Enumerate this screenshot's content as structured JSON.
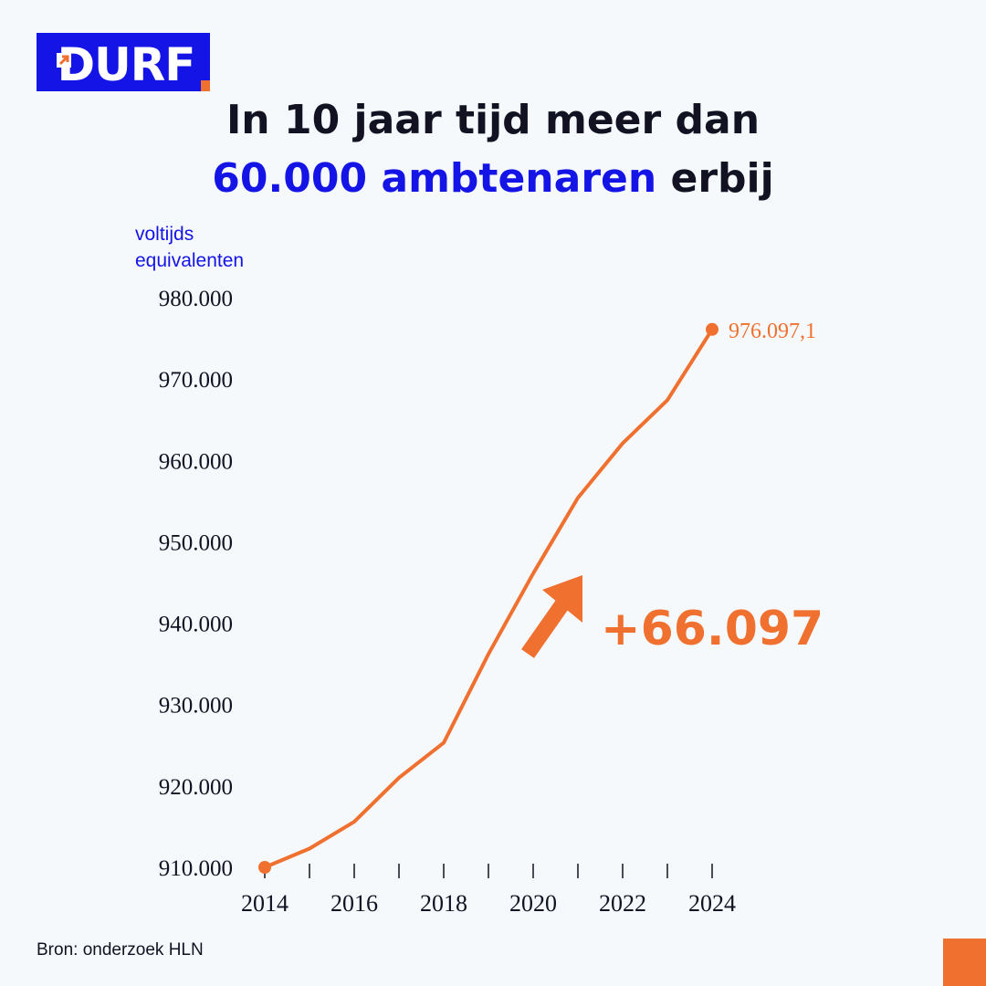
{
  "brand": {
    "name": "DURF",
    "accent": "#f07030",
    "primary": "#1414e6"
  },
  "title": {
    "line1": "In 10 jaar tijd meer dan",
    "highlight": "60.000 ambtenaren",
    "rest": " erbij"
  },
  "source": "Bron: onderzoek HLN",
  "annotation": {
    "text": "+66.097",
    "icon": "arrow-up-right-icon"
  },
  "chart_data": {
    "type": "line",
    "ylabel": "voltijds equivalenten",
    "ylabel_lines": [
      "voltijds",
      "equivalenten"
    ],
    "ylim": [
      910000,
      980000
    ],
    "yticks": [
      910000,
      920000,
      930000,
      940000,
      950000,
      960000,
      970000,
      980000
    ],
    "ytick_labels": [
      "910.000",
      "920.000",
      "930.000",
      "940.000",
      "950.000",
      "960.000",
      "970.000",
      "980.000"
    ],
    "xlim": [
      2014,
      2024
    ],
    "xticks": [
      2014,
      2016,
      2018,
      2020,
      2022,
      2024
    ],
    "xtick_labels": [
      "2014",
      "2016",
      "2018",
      "2020",
      "2022",
      "2024"
    ],
    "series": [
      {
        "color": "#f07030",
        "x": [
          2014,
          2015,
          2016,
          2017,
          2018,
          2019,
          2020,
          2021,
          2022,
          2023,
          2024
        ],
        "y": [
          910000,
          912300,
          915600,
          921000,
          925300,
          936200,
          946100,
          955400,
          962100,
          967400,
          976097.1
        ]
      }
    ],
    "end_label": "976.097,1"
  }
}
